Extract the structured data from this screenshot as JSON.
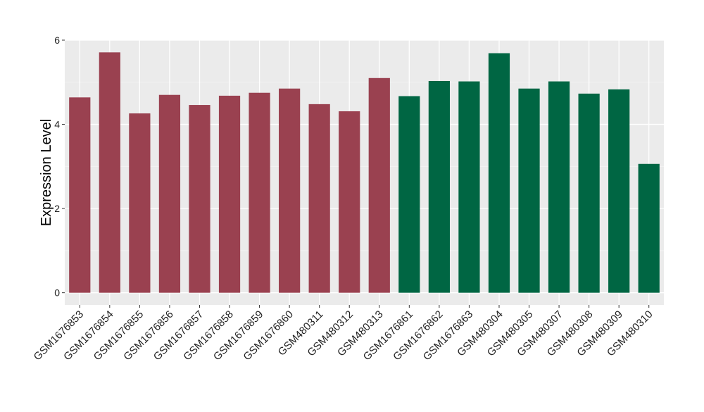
{
  "chart_data": {
    "type": "bar",
    "title": "",
    "xlabel": "",
    "ylabel": "Expression Level",
    "ylim": [
      -0.29,
      6.0
    ],
    "yticks": [
      0,
      2,
      4,
      6
    ],
    "grid": true,
    "legend": "none",
    "categories": [
      "GSM1676853",
      "GSM1676854",
      "GSM1676855",
      "GSM1676856",
      "GSM1676857",
      "GSM1676858",
      "GSM1676859",
      "GSM1676860",
      "GSM480311",
      "GSM480312",
      "GSM480313",
      "GSM1676861",
      "GSM1676862",
      "GSM1676863",
      "GSM480304",
      "GSM480305",
      "GSM480307",
      "GSM480308",
      "GSM480309",
      "GSM480310"
    ],
    "values": [
      4.64,
      5.71,
      4.26,
      4.7,
      4.46,
      4.68,
      4.75,
      4.85,
      4.48,
      4.31,
      5.1,
      4.67,
      5.03,
      5.02,
      5.69,
      4.85,
      5.02,
      4.73,
      4.83,
      3.06
    ],
    "groups": [
      0,
      0,
      0,
      0,
      0,
      0,
      0,
      0,
      0,
      0,
      0,
      1,
      1,
      1,
      1,
      1,
      1,
      1,
      1,
      1
    ],
    "colors": [
      "#9a4150",
      "#006643"
    ],
    "panel_background": "#ebebeb"
  }
}
